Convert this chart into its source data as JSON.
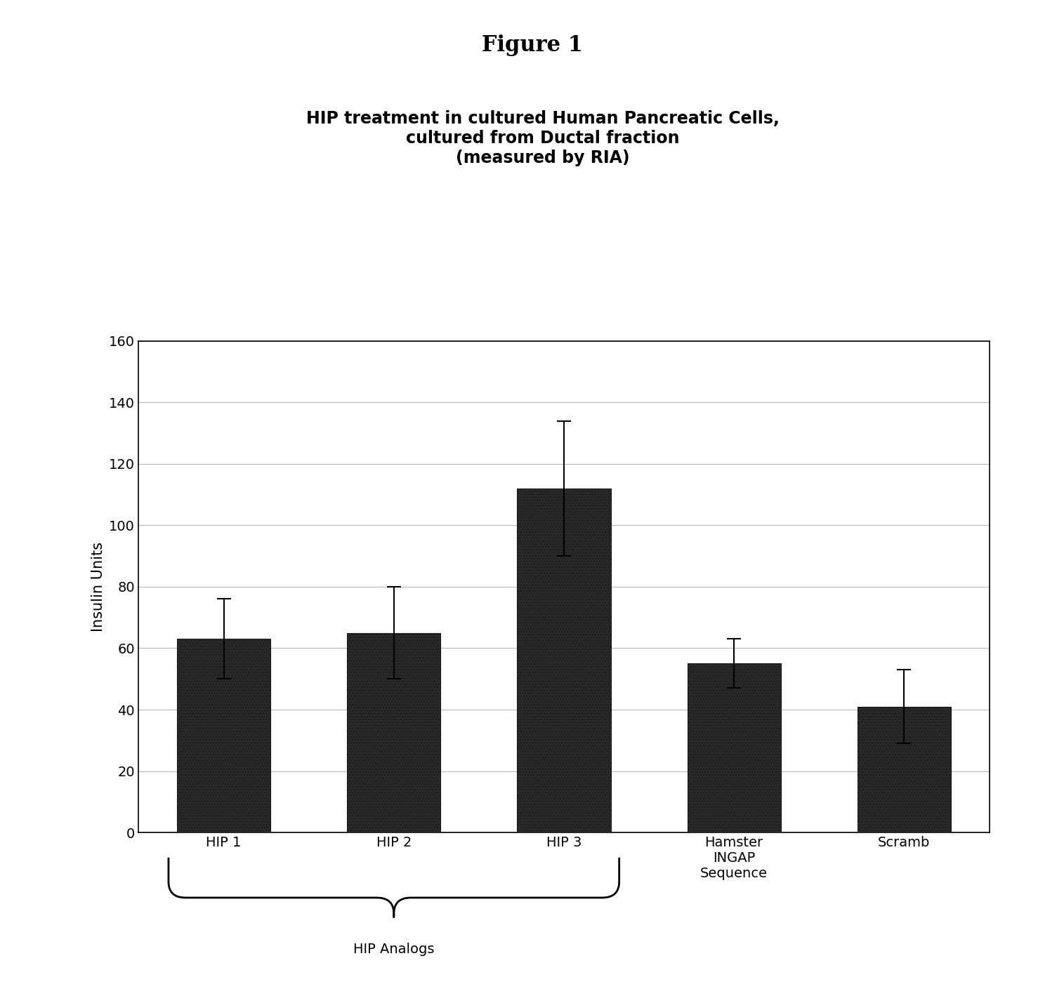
{
  "figure_title": "Figure 1",
  "chart_title": "HIP treatment in cultured Human Pancreatic Cells,\ncultured from Ductal fraction\n(measured by RIA)",
  "categories": [
    "HIP 1",
    "HIP 2",
    "HIP 3",
    "Hamster\nINGAP\nSequence",
    "Scramb"
  ],
  "values": [
    63,
    65,
    112,
    55,
    41
  ],
  "errors": [
    13,
    15,
    22,
    8,
    12
  ],
  "ylabel": "Insulin Units",
  "ylim": [
    0,
    160
  ],
  "yticks": [
    0,
    20,
    40,
    60,
    80,
    100,
    120,
    140,
    160
  ],
  "bar_color": "#2a2a2a",
  "bar_hatch": "....",
  "bar_width": 0.55,
  "brace_label": "HIP Analogs",
  "background_color": "#ffffff",
  "figure_title_fontsize": 22,
  "chart_title_fontsize": 17,
  "axis_fontsize": 15,
  "tick_fontsize": 14,
  "brace_label_fontsize": 14
}
